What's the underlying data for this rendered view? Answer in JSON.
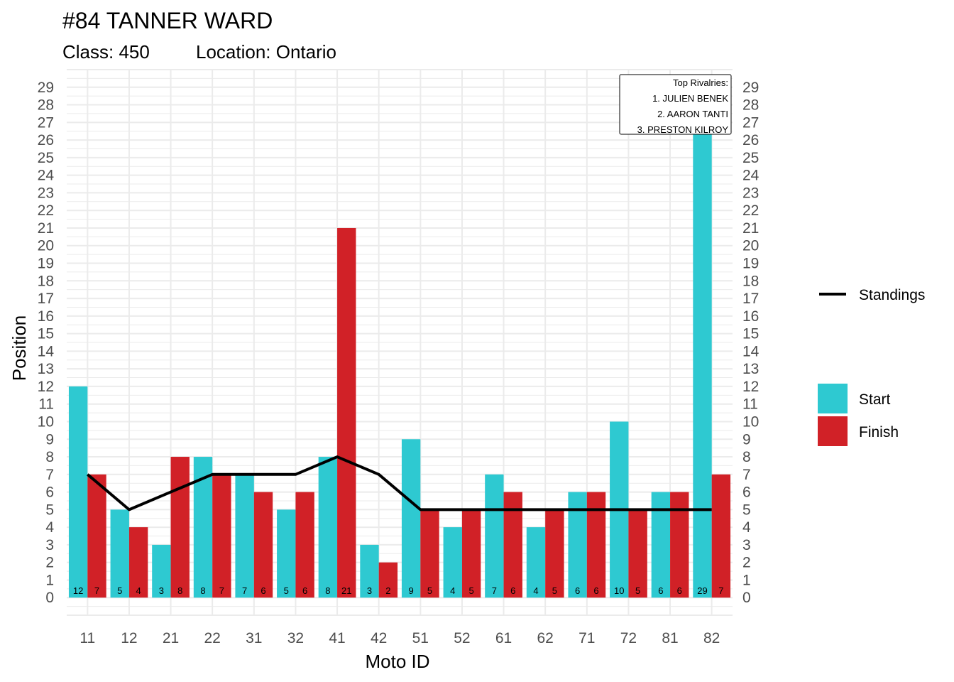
{
  "chart_data": {
    "type": "bar",
    "title": "#84 TANNER WARD",
    "subtitle": {
      "class": "Class: 450",
      "location": "Location: Ontario"
    },
    "xlabel": "Moto ID",
    "ylabel": "Position",
    "ylim": [
      -1,
      30
    ],
    "yticks": [
      0,
      1,
      2,
      3,
      4,
      5,
      6,
      7,
      8,
      9,
      10,
      11,
      12,
      13,
      14,
      15,
      16,
      17,
      18,
      19,
      20,
      21,
      22,
      23,
      24,
      25,
      26,
      27,
      28,
      29
    ],
    "grid": true,
    "categories": [
      "11",
      "12",
      "21",
      "22",
      "31",
      "32",
      "41",
      "42",
      "51",
      "52",
      "61",
      "62",
      "71",
      "72",
      "81",
      "82"
    ],
    "series": [
      {
        "name": "Start",
        "color": "#2ec9d1",
        "values": [
          12,
          5,
          3,
          8,
          7,
          5,
          8,
          3,
          9,
          4,
          7,
          4,
          6,
          10,
          6,
          29
        ]
      },
      {
        "name": "Finish",
        "color": "#d12127",
        "values": [
          7,
          4,
          8,
          7,
          6,
          6,
          21,
          2,
          5,
          5,
          6,
          5,
          6,
          5,
          6,
          7
        ]
      }
    ],
    "line": {
      "name": "Standings",
      "color": "#000000",
      "values": [
        7,
        5,
        6,
        7,
        7,
        7,
        8,
        7,
        5,
        5,
        5,
        5,
        5,
        5,
        5,
        5
      ]
    },
    "legend_position": "right",
    "annotation": {
      "heading": "Top Rivalries:",
      "items": [
        "1. JULIEN BENEK",
        "2. AARON TANTI",
        "3. PRESTON KILROY"
      ],
      "position": "top-right"
    }
  }
}
